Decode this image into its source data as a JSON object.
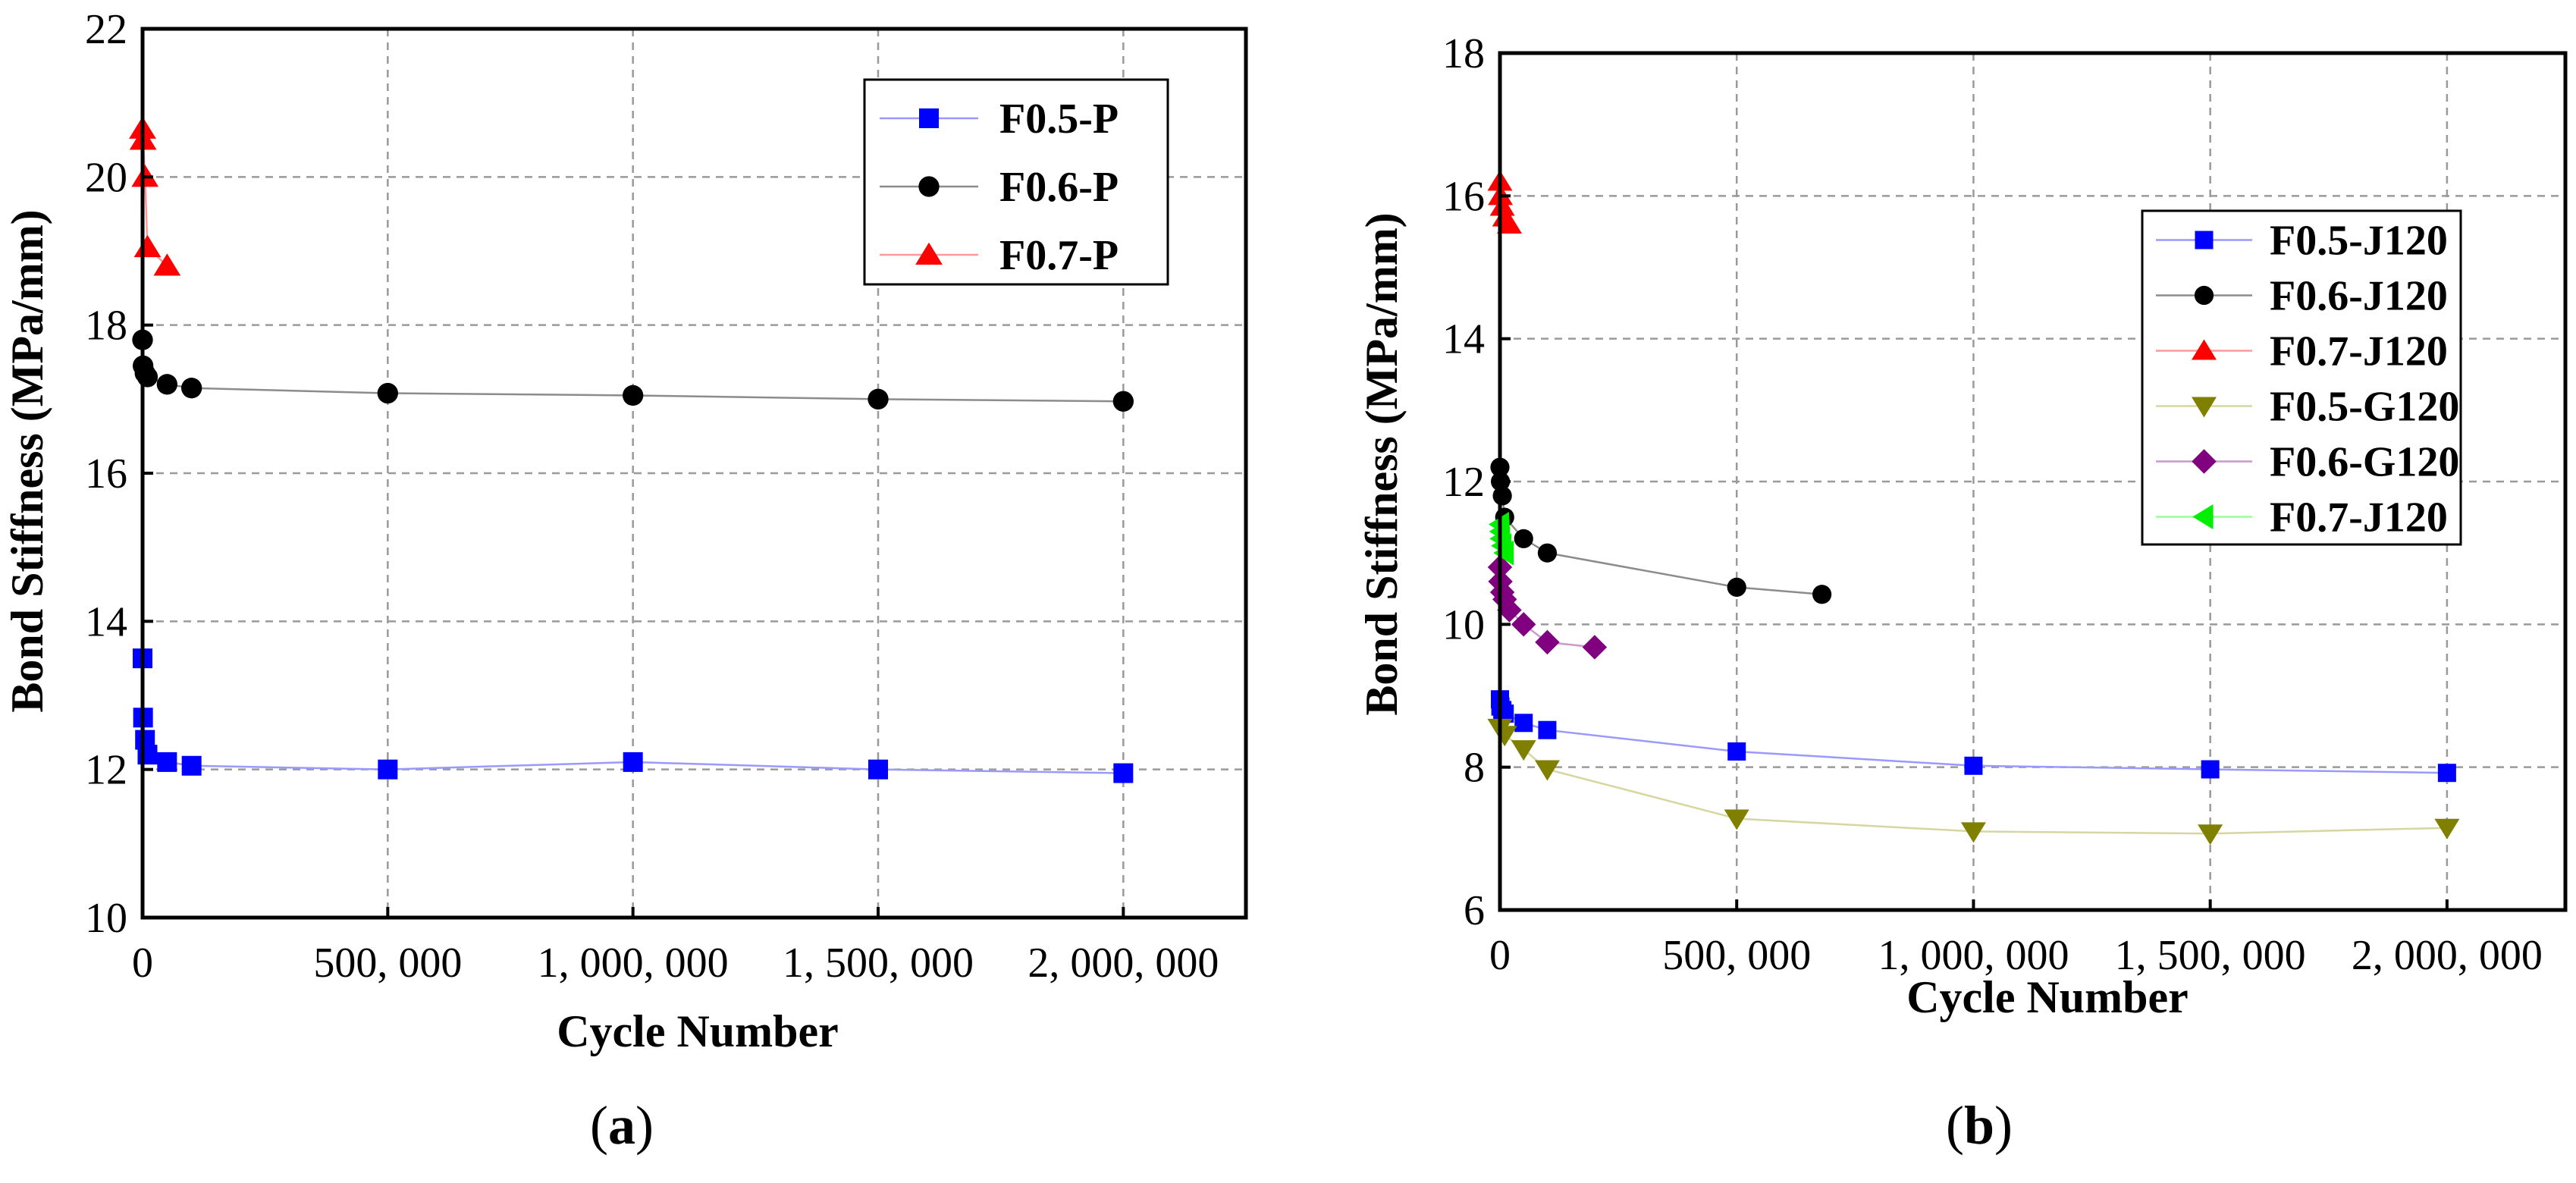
{
  "chart_data": [
    {
      "id": "a",
      "type": "line",
      "caption": "a",
      "title": "",
      "xlabel": "Cycle Number",
      "ylabel": "Bond Stiffness (MPa/mm)",
      "xlim": [
        0,
        2250000
      ],
      "ylim": [
        10,
        22
      ],
      "xticks": [
        0,
        500000,
        1000000,
        1500000,
        2000000
      ],
      "xtick_labels": [
        "0",
        "500, 000",
        "1, 000, 000",
        "1, 500, 000",
        "2, 000, 000"
      ],
      "yticks": [
        10,
        12,
        14,
        16,
        18,
        20,
        22
      ],
      "ytick_labels": [
        "10",
        "12",
        "14",
        "16",
        "18",
        "20",
        "22"
      ],
      "grid": true,
      "legend_position": "top-right",
      "series": [
        {
          "name": "F0.5-P",
          "color": "#0000ff",
          "line_color": "#9999ff",
          "marker": "square",
          "x": [
            0,
            1000,
            5000,
            10000,
            50000,
            100000,
            500000,
            1000000,
            1500000,
            2000000
          ],
          "y": [
            13.5,
            12.7,
            12.4,
            12.2,
            12.1,
            12.05,
            12.0,
            12.1,
            12.0,
            11.95
          ]
        },
        {
          "name": "F0.6-P",
          "color": "#000000",
          "line_color": "#8c8c8c",
          "marker": "circle",
          "x": [
            0,
            1000,
            5000,
            10000,
            50000,
            100000,
            500000,
            1000000,
            1500000,
            2000000
          ],
          "y": [
            17.8,
            17.45,
            17.35,
            17.3,
            17.2,
            17.15,
            17.08,
            17.05,
            17.0,
            16.97
          ]
        },
        {
          "name": "F0.7-P",
          "color": "#ff0000",
          "line_color": "#ff9999",
          "marker": "triangle-up",
          "x": [
            0,
            1000,
            5000,
            10000,
            50000
          ],
          "y": [
            20.65,
            20.5,
            20.0,
            19.05,
            18.8
          ]
        }
      ]
    },
    {
      "id": "b",
      "type": "line",
      "caption": "b",
      "title": "",
      "xlabel": "Cycle Number",
      "ylabel": "Bond Stiffness (MPa/mm)",
      "xlim": [
        0,
        2250000
      ],
      "ylim": [
        6,
        18
      ],
      "xticks": [
        0,
        500000,
        1000000,
        1500000,
        2000000
      ],
      "xtick_labels": [
        "0",
        "500, 000",
        "1, 000, 000",
        "1, 500, 000",
        "2, 000, 000"
      ],
      "yticks": [
        6,
        8,
        10,
        12,
        14,
        16,
        18
      ],
      "ytick_labels": [
        "6",
        "8",
        "10",
        "12",
        "14",
        "16",
        "18"
      ],
      "grid": true,
      "legend_position": "middle-right",
      "series": [
        {
          "name": "F0.5-J120",
          "color": "#0000ff",
          "line_color": "#9999ff",
          "marker": "square",
          "x": [
            0,
            1000,
            5000,
            10000,
            50000,
            100000,
            500000,
            1000000,
            1500000,
            2000000
          ],
          "y": [
            8.95,
            8.85,
            8.8,
            8.75,
            8.62,
            8.52,
            8.22,
            8.02,
            7.97,
            7.92
          ]
        },
        {
          "name": "F0.6-J120",
          "color": "#000000",
          "line_color": "#8c8c8c",
          "marker": "circle",
          "x": [
            0,
            1000,
            5000,
            10000,
            50000,
            100000,
            500000,
            680000
          ],
          "y": [
            12.2,
            12.0,
            11.8,
            11.5,
            11.2,
            11.0,
            10.52,
            10.42
          ]
        },
        {
          "name": "F0.7-J120",
          "color": "#ff0000",
          "line_color": "#ff9999",
          "marker": "triangle-up",
          "x": [
            0,
            1000,
            5000,
            10000,
            20000
          ],
          "y": [
            16.2,
            16.0,
            15.85,
            15.7,
            15.6
          ]
        },
        {
          "name": "F0.5-G120",
          "color": "#808000",
          "line_color": "#d6d6a0",
          "marker": "triangle-down",
          "x": [
            0,
            10000,
            50000,
            100000,
            500000,
            1000000,
            1500000,
            2000000
          ],
          "y": [
            8.55,
            8.45,
            8.25,
            7.97,
            7.28,
            7.1,
            7.07,
            7.15
          ]
        },
        {
          "name": "F0.6-G120",
          "color": "#800080",
          "line_color": "#cc99cc",
          "marker": "diamond",
          "x": [
            0,
            1000,
            5000,
            10000,
            20000,
            50000,
            100000,
            200000
          ],
          "y": [
            10.8,
            10.6,
            10.45,
            10.35,
            10.2,
            10.0,
            9.75,
            9.68
          ]
        },
        {
          "name": "F0.7-J120",
          "color": "#00ee00",
          "line_color": "#99ff99",
          "marker": "triangle-left",
          "x": [
            0,
            1000,
            2000,
            5000,
            10000
          ],
          "y": [
            11.4,
            11.3,
            11.2,
            11.1,
            11.0
          ]
        }
      ]
    }
  ]
}
